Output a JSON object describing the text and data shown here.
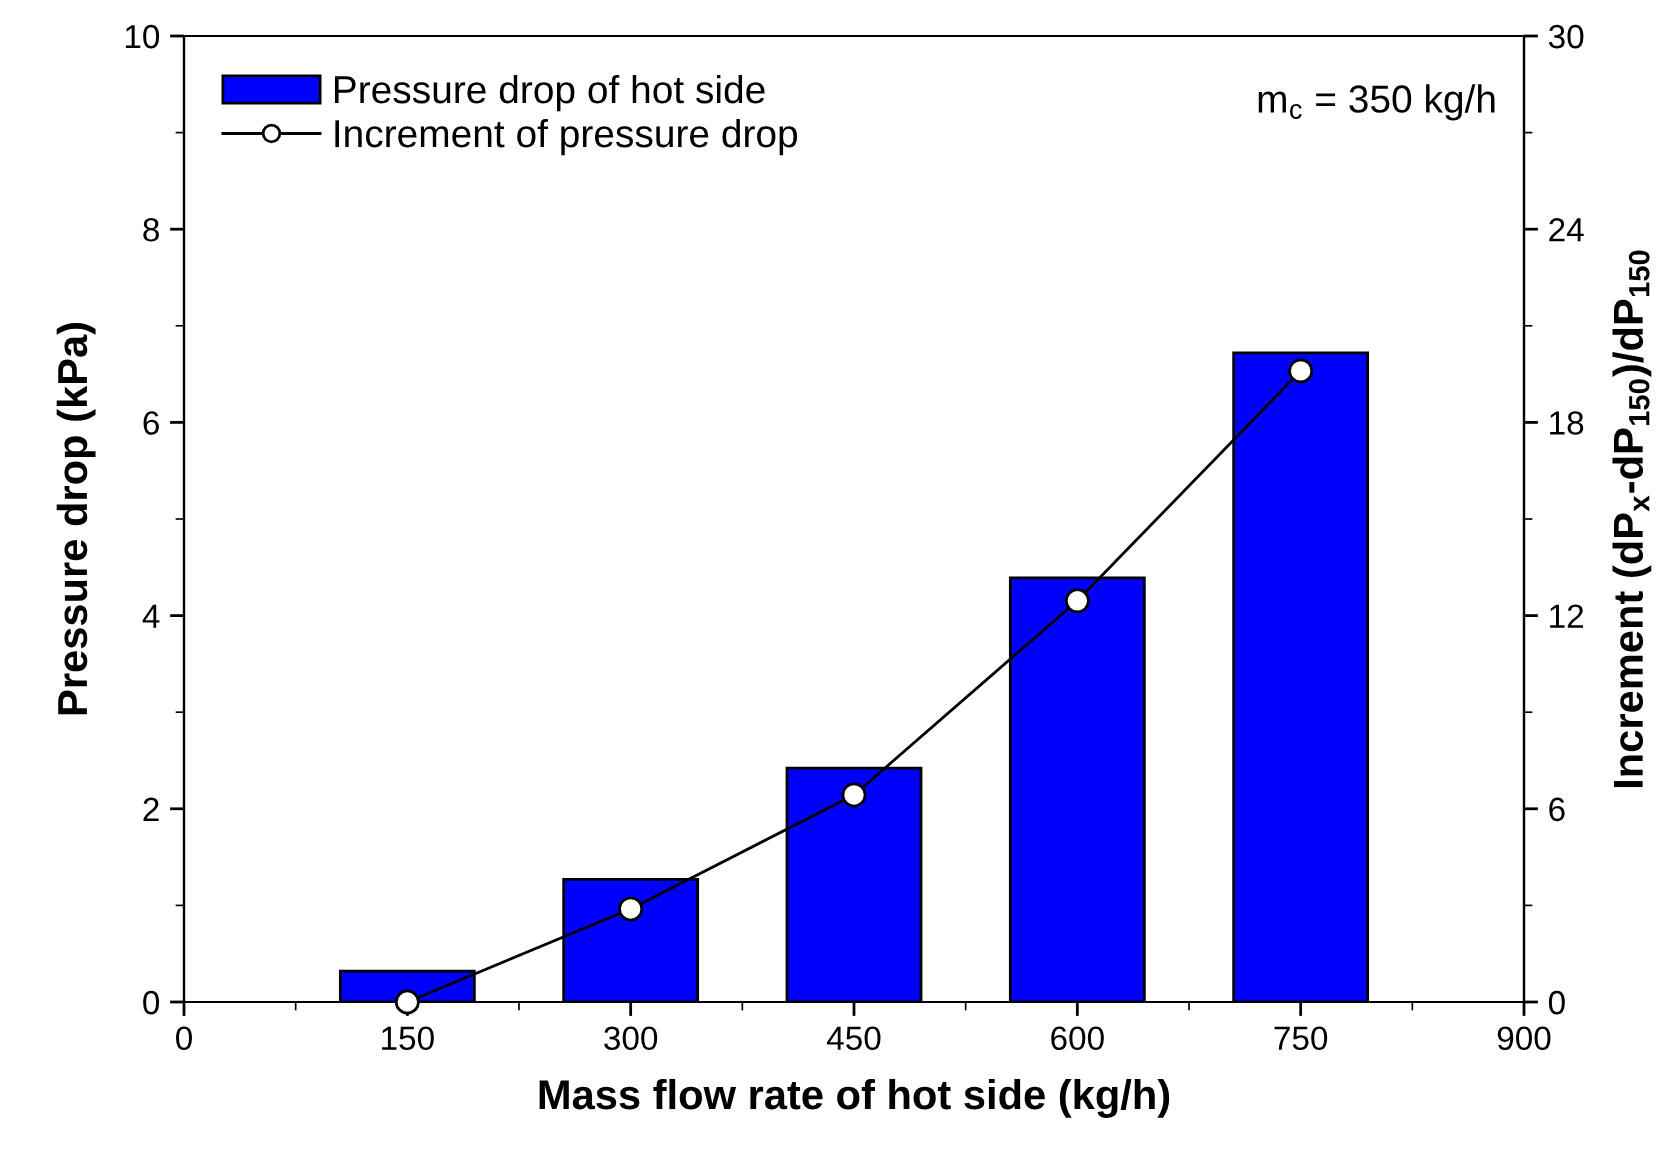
{
  "chart_data": {
    "type": "bar",
    "xlabel": "Mass flow rate of hot side (kg/h)",
    "ylabel": "Pressure drop (kPa)",
    "y2label": "Increment (dP$_{x}$-dP$_{150}$)/dP$_{150}$",
    "x": [
      150,
      300,
      450,
      600,
      750
    ],
    "series": [
      {
        "name": "Pressure drop of hot side",
        "color": "#0000ff",
        "values": [
          0.32,
          1.27,
          2.42,
          4.39,
          6.72
        ]
      },
      {
        "name": "Increment of pressure drop",
        "type": "line",
        "axis": "y2",
        "color": "#000000",
        "marker": "circle",
        "values": [
          0,
          2.89,
          6.43,
          12.46,
          19.6
        ]
      }
    ],
    "xlim": [
      0,
      900
    ],
    "xticks": [
      0,
      {
        "value": 75,
        "label": null
      },
      150,
      {
        "value": 225,
        "label": null
      },
      300,
      {
        "value": 375,
        "label": null
      },
      450,
      {
        "value": 525,
        "label": null
      },
      600,
      {
        "value": 675,
        "label": null
      },
      750,
      {
        "value": 825,
        "label": null
      },
      900
    ],
    "ylim": [
      0,
      10
    ],
    "yticks": [
      0,
      {
        "value": 1,
        "label": null
      },
      2,
      {
        "value": 3,
        "label": null
      },
      4,
      {
        "value": 5,
        "label": null
      },
      6,
      {
        "value": 7,
        "label": null
      },
      8,
      {
        "value": 9,
        "label": null
      },
      10
    ],
    "y2lim": [
      0,
      30
    ],
    "y2ticks": [
      0,
      {
        "value": 3,
        "label": null
      },
      6,
      {
        "value": 9,
        "label": null
      },
      12,
      {
        "value": 15,
        "label": null
      },
      18,
      {
        "value": 21,
        "label": null
      },
      24,
      {
        "value": 27,
        "label": null
      },
      30
    ],
    "annotations": [
      "m$_{c}$ = 350 kg/h"
    ],
    "legend": "top left",
    "grid": false
  }
}
